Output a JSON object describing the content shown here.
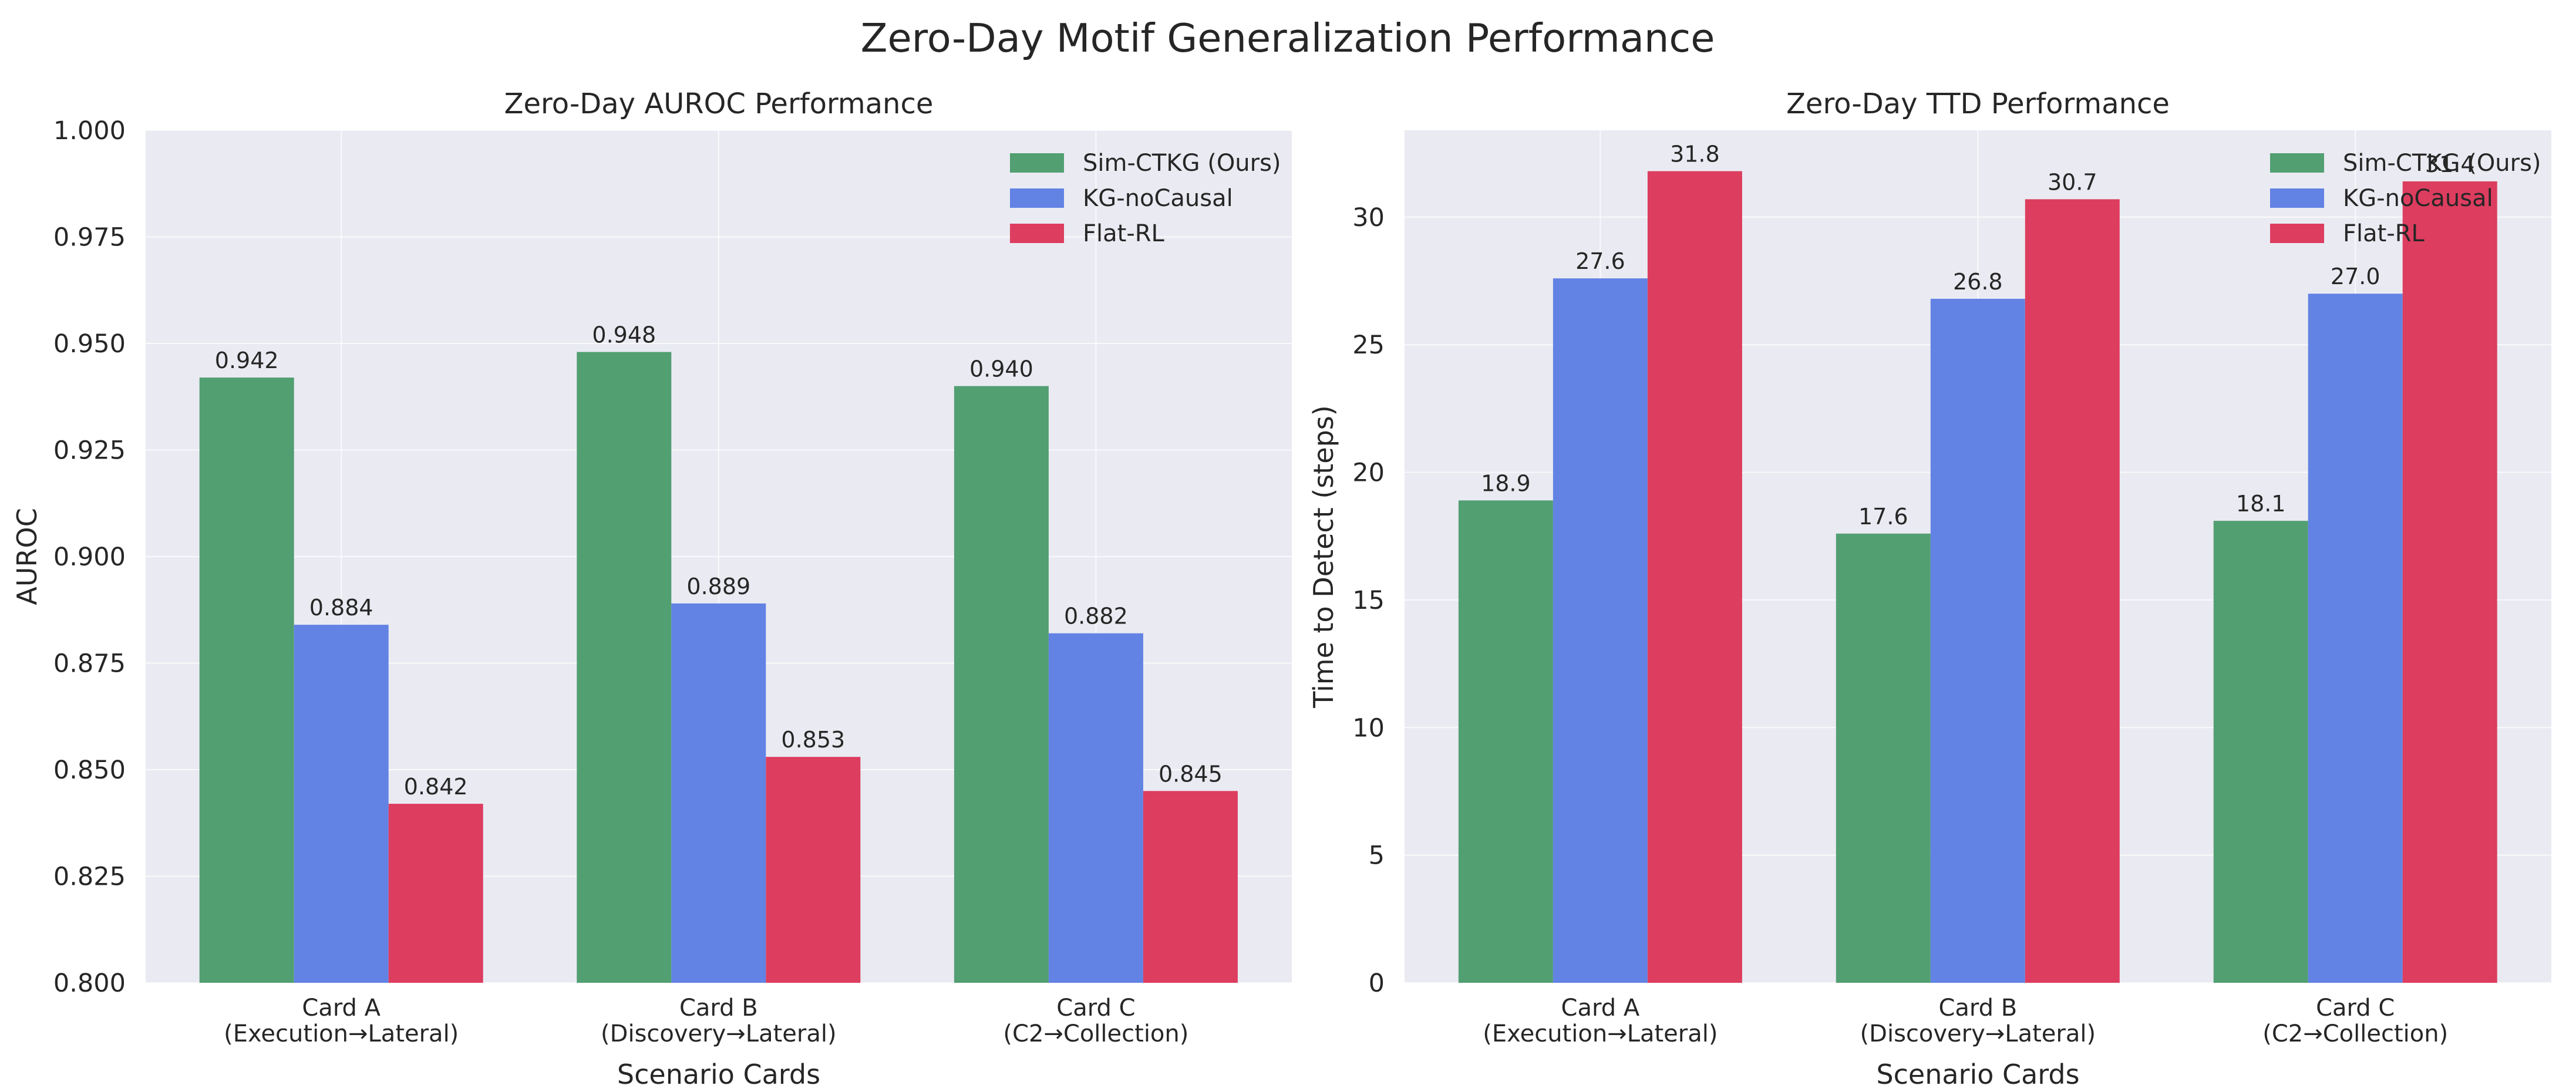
{
  "figure_title": "Zero-Day Motif Generalization Performance",
  "colors": {
    "sim_ctkg": "#529f72",
    "kg_nocausal": "#6283e4",
    "flat_rl": "#dd3d5f",
    "plot_bg": "#eaeaf2"
  },
  "chart_data": [
    {
      "type": "bar",
      "title": "Zero-Day AUROC Performance",
      "xlabel": "Scenario Cards",
      "ylabel": "AUROC",
      "categories": [
        [
          "Card A",
          "(Execution→Lateral)"
        ],
        [
          "Card B",
          "(Discovery→Lateral)"
        ],
        [
          "Card C",
          "(C2→Collection)"
        ]
      ],
      "series": [
        {
          "name": "Sim-CTKG (Ours)",
          "color_key": "sim_ctkg",
          "values": [
            0.942,
            0.948,
            0.94
          ],
          "labels": [
            "0.942",
            "0.948",
            "0.940"
          ]
        },
        {
          "name": "KG-noCausal",
          "color_key": "kg_nocausal",
          "values": [
            0.884,
            0.889,
            0.882
          ],
          "labels": [
            "0.884",
            "0.889",
            "0.882"
          ]
        },
        {
          "name": "Flat-RL",
          "color_key": "flat_rl",
          "values": [
            0.842,
            0.853,
            0.845
          ],
          "labels": [
            "0.842",
            "0.853",
            "0.845"
          ]
        }
      ],
      "ylim": [
        0.8,
        1.0
      ],
      "yticks": [
        0.8,
        0.825,
        0.85,
        0.875,
        0.9,
        0.925,
        0.95,
        0.975,
        1.0
      ],
      "ytick_labels": [
        "0.800",
        "0.825",
        "0.850",
        "0.875",
        "0.900",
        "0.925",
        "0.950",
        "0.975",
        "1.000"
      ],
      "legend": "top-right",
      "grid": true
    },
    {
      "type": "bar",
      "title": "Zero-Day TTD Performance",
      "xlabel": "Scenario Cards",
      "ylabel": "Time to Detect (steps)",
      "categories": [
        [
          "Card A",
          "(Execution→Lateral)"
        ],
        [
          "Card B",
          "(Discovery→Lateral)"
        ],
        [
          "Card C",
          "(C2→Collection)"
        ]
      ],
      "series": [
        {
          "name": "Sim-CTKG (Ours)",
          "color_key": "sim_ctkg",
          "values": [
            18.9,
            17.6,
            18.1
          ],
          "labels": [
            "18.9",
            "17.6",
            "18.1"
          ]
        },
        {
          "name": "KG-noCausal",
          "color_key": "kg_nocausal",
          "values": [
            27.6,
            26.8,
            27.0
          ],
          "labels": [
            "27.6",
            "26.8",
            "27.0"
          ]
        },
        {
          "name": "Flat-RL",
          "color_key": "flat_rl",
          "values": [
            31.8,
            30.7,
            31.4
          ],
          "labels": [
            "31.8",
            "30.7",
            "31.4"
          ]
        }
      ],
      "ylim": [
        0,
        33.4
      ],
      "yticks": [
        0,
        5,
        10,
        15,
        20,
        25,
        30
      ],
      "ytick_labels": [
        "0",
        "5",
        "10",
        "15",
        "20",
        "25",
        "30"
      ],
      "legend": "top-right",
      "grid": true
    }
  ]
}
